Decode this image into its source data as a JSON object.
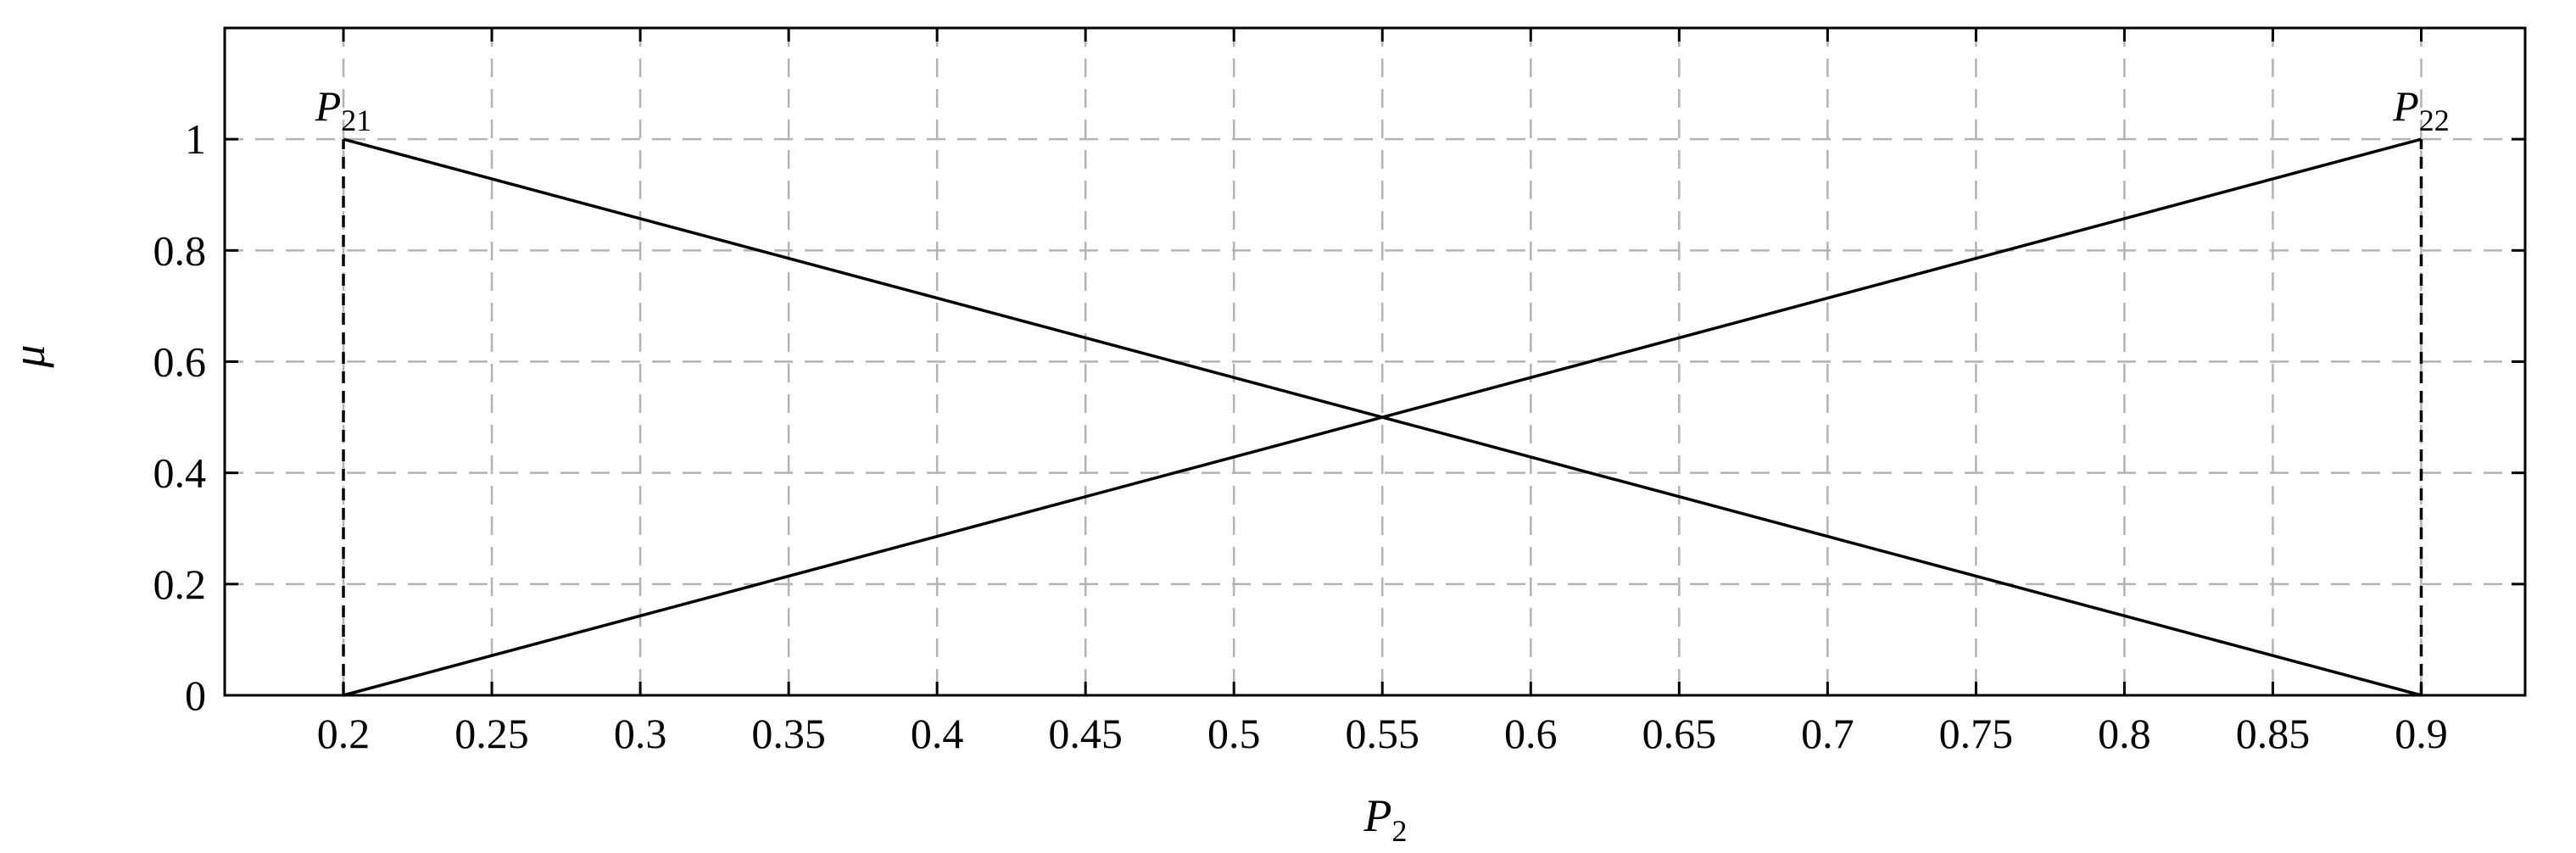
{
  "chart_data": {
    "type": "line",
    "title": "",
    "xlabel": "P",
    "xlabel_subscript": "2",
    "ylabel": "μ",
    "xlim": [
      0.16,
      0.935
    ],
    "ylim": [
      0,
      1.2
    ],
    "xticks": [
      0.2,
      0.25,
      0.3,
      0.35,
      0.4,
      0.45,
      0.5,
      0.55,
      0.6,
      0.65,
      0.7,
      0.75,
      0.8,
      0.85,
      0.9
    ],
    "xtick_labels": [
      "0.2",
      "0.25",
      "0.3",
      "0.35",
      "0.4",
      "0.45",
      "0.5",
      "0.55",
      "0.6",
      "0.65",
      "0.7",
      "0.75",
      "0.8",
      "0.85",
      "0.9"
    ],
    "yticks": [
      0,
      0.2,
      0.4,
      0.6,
      0.8,
      1
    ],
    "ytick_labels": [
      "0",
      "0.2",
      "0.4",
      "0.6",
      "0.8",
      "1"
    ],
    "grid": true,
    "grid_color": "#b3b3b3",
    "legend": "none",
    "series": [
      {
        "x": [
          0.2,
          0.9
        ],
        "y": [
          1,
          0
        ],
        "color": "#000000",
        "style": "solid"
      },
      {
        "x": [
          0.2,
          0.9
        ],
        "y": [
          0,
          1
        ],
        "color": "#000000",
        "style": "solid"
      }
    ],
    "vlines": [
      {
        "x": 0.2,
        "y": [
          0,
          1
        ],
        "style": "dashed",
        "color": "#000000"
      },
      {
        "x": 0.9,
        "y": [
          0,
          1
        ],
        "style": "dashed",
        "color": "#000000"
      }
    ],
    "annotations": [
      {
        "base": "P",
        "subscript": "21",
        "x": 0.2,
        "y": 1
      },
      {
        "base": "P",
        "subscript": "22",
        "x": 0.9,
        "y": 1
      }
    ]
  }
}
